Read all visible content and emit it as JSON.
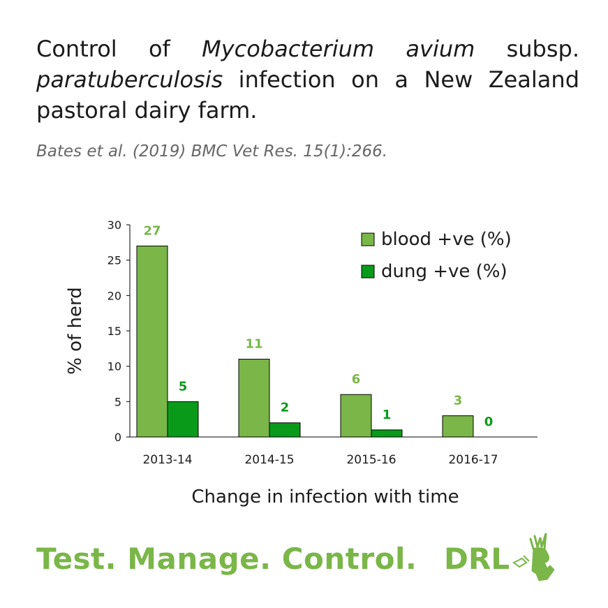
{
  "header": {
    "title_parts": [
      {
        "text": "Control of ",
        "italic": false
      },
      {
        "text": "Mycobacterium avium",
        "italic": true
      },
      {
        "text": " subsp. ",
        "italic": false
      },
      {
        "text": "paratuberculosis",
        "italic": true
      },
      {
        "text": " infection on a New Zealand pastoral dairy farm.",
        "italic": false
      }
    ],
    "citation": "Bates et al. (2019) BMC Vet Res. 15(1):266."
  },
  "footer": {
    "tagline": "Test. Manage. Control.",
    "brand": "DRL",
    "logo_icon": "deer-stag-logo-icon"
  },
  "colors": {
    "blood": "#7ab648",
    "dung": "#0a9a1a",
    "blood_label": "#7ab648",
    "dung_label": "#0a9a1a",
    "brand": "#7ab648"
  },
  "chart_data": {
    "type": "bar",
    "categories": [
      "2013-14",
      "2014-15",
      "2015-16",
      "2016-17"
    ],
    "series": [
      {
        "name": "blood +ve (%)",
        "values": [
          27,
          11,
          6,
          3
        ]
      },
      {
        "name": "dung +ve (%)",
        "values": [
          5,
          2,
          1,
          0
        ]
      }
    ],
    "xlabel": "Change in infection with time",
    "ylabel": "% of herd",
    "ylim": [
      0,
      30
    ],
    "yticks": [
      0,
      5,
      10,
      15,
      20,
      25,
      30
    ],
    "legend": "top-right",
    "grid": false
  }
}
